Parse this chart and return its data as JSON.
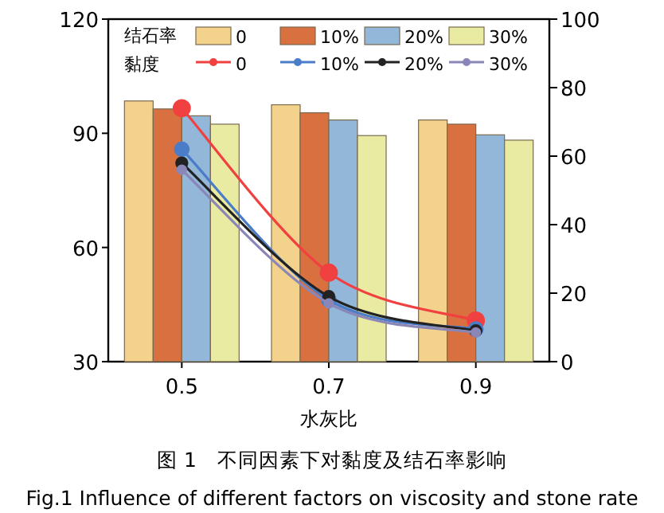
{
  "chart_data": {
    "type": "bar",
    "xlabel": "水灰比",
    "categories": [
      "0.5",
      "0.7",
      "0.9"
    ],
    "ylim": [
      30,
      120
    ],
    "yticks": [
      30,
      60,
      90,
      120
    ],
    "y2lim": [
      0,
      100
    ],
    "y2ticks": [
      0,
      20,
      40,
      60,
      80,
      100
    ],
    "legend": "top",
    "legend_title": "结石率",
    "marker": "circle",
    "series": [
      {
        "name": "0",
        "color": "#f3d28c",
        "values": [
          98.5,
          97.5,
          93.5
        ]
      },
      {
        "name": "10%",
        "color": "#d8703f",
        "values": [
          96.4,
          95.4,
          92.4
        ]
      },
      {
        "name": "20%",
        "color": "#92b7d8",
        "values": [
          94.6,
          93.5,
          89.6
        ]
      },
      {
        "name": "30%",
        "color": "#e9eba2",
        "values": [
          92.4,
          89.4,
          88.2
        ]
      },
      {
        "name": "0",
        "type": "line",
        "axis": "y2",
        "color": "#f04040",
        "values": [
          74,
          26,
          12
        ]
      },
      {
        "name": "10%",
        "type": "line",
        "axis": "y2",
        "color": "#4a7cc8",
        "values": [
          62,
          18,
          9.5
        ]
      },
      {
        "name": "20%",
        "type": "line",
        "axis": "y2",
        "color": "#222222",
        "values": [
          58,
          19,
          9
        ]
      },
      {
        "name": "30%",
        "type": "line",
        "axis": "y2",
        "color": "#8a86b8",
        "values": [
          56,
          17,
          8.5
        ]
      }
    ],
    "annotations": [
      "黏度",
      "图 1　不同因素下对黏度及结石率影响",
      "Fig.1 Influence of different factors on viscosity and stone rate"
    ]
  }
}
